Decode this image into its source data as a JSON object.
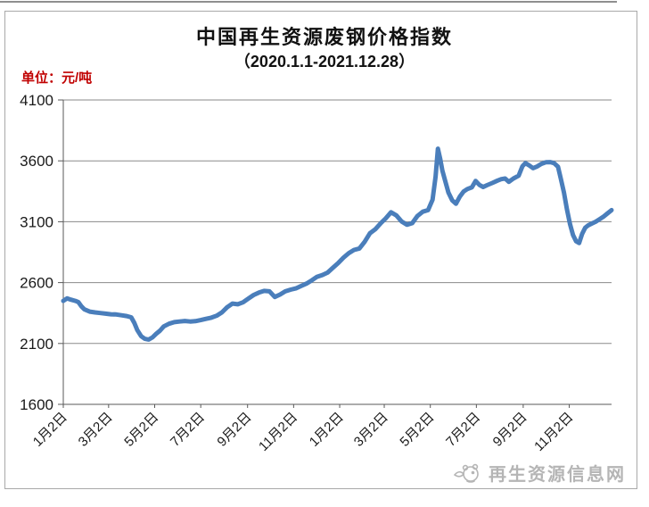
{
  "header": {
    "title": "中国再生资源废钢价格指数",
    "subtitle": "（2020.1.1-2021.12.28）",
    "unit_label": "单位：元/吨"
  },
  "watermark": {
    "icon": "mascot-logo-icon",
    "text": "再生资源信息网"
  },
  "colors": {
    "line": "#4a7ebb",
    "grid": "#8a8a8a",
    "axis": "#595959",
    "tick_text": "#1a1a1a",
    "title_text": "#111111",
    "unit_text": "#c00000",
    "watermark": "#b5b5b5",
    "border": "#a9a9a9"
  },
  "chart_data": {
    "type": "line",
    "title": "中国再生资源废钢价格指数（2020.1.1-2021.12.28）",
    "xlabel": "",
    "ylabel": "元/吨",
    "ylim": [
      1600,
      4100
    ],
    "yticks": [
      4100,
      3600,
      3100,
      2600,
      2100,
      1600
    ],
    "xlim_days": [
      0,
      726
    ],
    "xticks": [
      {
        "day": 0,
        "label": "1月2日"
      },
      {
        "day": 60,
        "label": "3月2日"
      },
      {
        "day": 121,
        "label": "5月2日"
      },
      {
        "day": 182,
        "label": "7月2日"
      },
      {
        "day": 244,
        "label": "9月2日"
      },
      {
        "day": 305,
        "label": "11月2日"
      },
      {
        "day": 366,
        "label": "1月2日"
      },
      {
        "day": 425,
        "label": "3月2日"
      },
      {
        "day": 486,
        "label": "5月2日"
      },
      {
        "day": 547,
        "label": "7月2日"
      },
      {
        "day": 609,
        "label": "9月2日"
      },
      {
        "day": 670,
        "label": "11月2日"
      }
    ],
    "grid": "horizontal",
    "legend": "none",
    "series": [
      {
        "name": "废钢价格指数",
        "color": "#4a7ebb",
        "points": [
          [
            0,
            2450
          ],
          [
            5,
            2470
          ],
          [
            10,
            2460
          ],
          [
            16,
            2450
          ],
          [
            20,
            2440
          ],
          [
            24,
            2405
          ],
          [
            28,
            2380
          ],
          [
            35,
            2362
          ],
          [
            42,
            2355
          ],
          [
            49,
            2350
          ],
          [
            56,
            2345
          ],
          [
            63,
            2340
          ],
          [
            70,
            2338
          ],
          [
            77,
            2332
          ],
          [
            84,
            2325
          ],
          [
            90,
            2315
          ],
          [
            94,
            2270
          ],
          [
            98,
            2210
          ],
          [
            103,
            2160
          ],
          [
            108,
            2138
          ],
          [
            113,
            2132
          ],
          [
            118,
            2150
          ],
          [
            123,
            2180
          ],
          [
            128,
            2205
          ],
          [
            133,
            2240
          ],
          [
            140,
            2262
          ],
          [
            147,
            2275
          ],
          [
            154,
            2280
          ],
          [
            161,
            2285
          ],
          [
            168,
            2280
          ],
          [
            175,
            2283
          ],
          [
            182,
            2292
          ],
          [
            189,
            2302
          ],
          [
            196,
            2312
          ],
          [
            203,
            2328
          ],
          [
            210,
            2355
          ],
          [
            217,
            2398
          ],
          [
            224,
            2428
          ],
          [
            231,
            2422
          ],
          [
            238,
            2438
          ],
          [
            245,
            2468
          ],
          [
            252,
            2498
          ],
          [
            259,
            2518
          ],
          [
            266,
            2532
          ],
          [
            273,
            2528
          ],
          [
            280,
            2482
          ],
          [
            287,
            2502
          ],
          [
            294,
            2528
          ],
          [
            301,
            2542
          ],
          [
            308,
            2552
          ],
          [
            315,
            2572
          ],
          [
            322,
            2592
          ],
          [
            329,
            2618
          ],
          [
            336,
            2648
          ],
          [
            343,
            2662
          ],
          [
            350,
            2682
          ],
          [
            357,
            2722
          ],
          [
            364,
            2760
          ],
          [
            371,
            2805
          ],
          [
            378,
            2842
          ],
          [
            385,
            2868
          ],
          [
            392,
            2880
          ],
          [
            399,
            2935
          ],
          [
            406,
            3005
          ],
          [
            413,
            3038
          ],
          [
            420,
            3085
          ],
          [
            427,
            3128
          ],
          [
            434,
            3178
          ],
          [
            441,
            3152
          ],
          [
            448,
            3102
          ],
          [
            455,
            3075
          ],
          [
            462,
            3088
          ],
          [
            469,
            3148
          ],
          [
            476,
            3182
          ],
          [
            483,
            3195
          ],
          [
            489,
            3280
          ],
          [
            493,
            3470
          ],
          [
            496,
            3700
          ],
          [
            499,
            3620
          ],
          [
            502,
            3520
          ],
          [
            506,
            3430
          ],
          [
            510,
            3340
          ],
          [
            515,
            3275
          ],
          [
            520,
            3248
          ],
          [
            525,
            3305
          ],
          [
            530,
            3348
          ],
          [
            535,
            3368
          ],
          [
            541,
            3382
          ],
          [
            546,
            3435
          ],
          [
            551,
            3402
          ],
          [
            556,
            3385
          ],
          [
            561,
            3400
          ],
          [
            568,
            3418
          ],
          [
            575,
            3438
          ],
          [
            580,
            3450
          ],
          [
            585,
            3455
          ],
          [
            590,
            3428
          ],
          [
            596,
            3455
          ],
          [
            603,
            3478
          ],
          [
            608,
            3555
          ],
          [
            612,
            3582
          ],
          [
            617,
            3562
          ],
          [
            622,
            3540
          ],
          [
            627,
            3552
          ],
          [
            633,
            3575
          ],
          [
            639,
            3588
          ],
          [
            645,
            3590
          ],
          [
            650,
            3580
          ],
          [
            655,
            3552
          ],
          [
            659,
            3450
          ],
          [
            663,
            3340
          ],
          [
            667,
            3200
          ],
          [
            671,
            3080
          ],
          [
            675,
            2990
          ],
          [
            679,
            2940
          ],
          [
            683,
            2925
          ],
          [
            687,
            3000
          ],
          [
            691,
            3050
          ],
          [
            695,
            3070
          ],
          [
            700,
            3085
          ],
          [
            705,
            3100
          ],
          [
            710,
            3120
          ],
          [
            715,
            3140
          ],
          [
            720,
            3165
          ],
          [
            726,
            3195
          ]
        ]
      }
    ]
  }
}
